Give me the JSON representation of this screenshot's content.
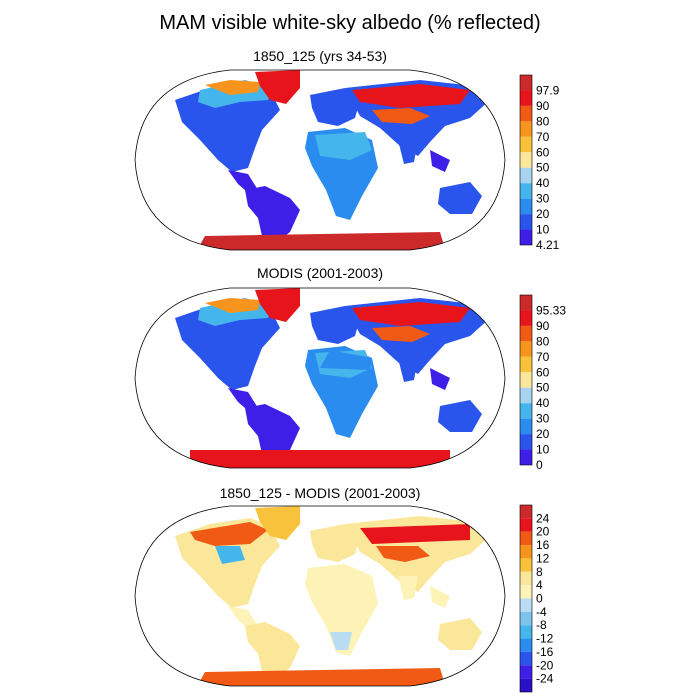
{
  "title": "MAM visible white-sky albedo (% reflected)",
  "panels": [
    {
      "title": "1850_125 (yrs 34-53)",
      "colorbar": {
        "labels": [
          "97.9",
          "90",
          "80",
          "70",
          "60",
          "50",
          "40",
          "30",
          "20",
          "10",
          "4.21"
        ],
        "colors": [
          "#cc2a2a",
          "#e8141c",
          "#f05a14",
          "#f7941d",
          "#f9c23c",
          "#fbe79a",
          "#a8d4ef",
          "#45b6eb",
          "#2a8cef",
          "#2a55ec",
          "#3d1fe8"
        ]
      }
    },
    {
      "title": "MODIS (2001-2003)",
      "colorbar": {
        "labels": [
          "95.33",
          "90",
          "80",
          "70",
          "60",
          "50",
          "40",
          "30",
          "20",
          "10",
          "0"
        ],
        "colors": [
          "#cc2a2a",
          "#e8141c",
          "#f05a14",
          "#f7941d",
          "#f9c23c",
          "#fbe79a",
          "#a8d4ef",
          "#45b6eb",
          "#2a8cef",
          "#2a55ec",
          "#3d1fe8"
        ]
      }
    },
    {
      "title": "1850_125 - MODIS (2001-2003)",
      "colorbar": {
        "labels": [
          "24",
          "20",
          "16",
          "12",
          "8",
          "4",
          "0",
          "-4",
          "-8",
          "-12",
          "-16",
          "-20",
          "-24"
        ],
        "colors": [
          "#cc2a2a",
          "#e8141c",
          "#f05a14",
          "#f7941d",
          "#f9c23c",
          "#fbe79a",
          "#fdf3b6",
          "#b9dcf2",
          "#7cc4ee",
          "#45b6eb",
          "#2a8cef",
          "#2a55ec",
          "#3d1fe8",
          "#2a10c8"
        ]
      }
    }
  ]
}
